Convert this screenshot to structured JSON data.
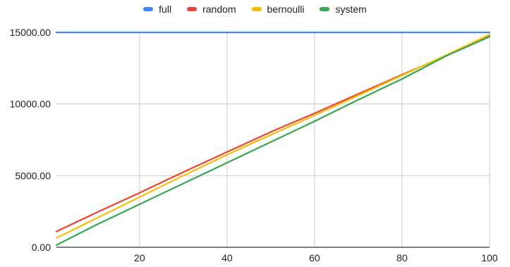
{
  "chart_data": {
    "type": "line",
    "title": "",
    "xlabel": "",
    "ylabel": "",
    "xlim": [
      1,
      100
    ],
    "ylim": [
      0,
      15000
    ],
    "x_ticks": [
      20,
      40,
      60,
      80,
      100
    ],
    "y_ticks": [
      0,
      5000,
      10000,
      15000
    ],
    "y_tick_labels": [
      "0.00",
      "5000.00",
      "10000.00",
      "15000.00"
    ],
    "grid": true,
    "legend": "top-center",
    "series": [
      {
        "name": "full",
        "color": "#4285f4",
        "x": [
          1,
          10,
          20,
          30,
          40,
          50,
          60,
          70,
          80,
          90,
          100
        ],
        "y": [
          15000,
          15000,
          15000,
          15000,
          15000,
          15000,
          15000,
          15000,
          15000,
          15000,
          15000
        ]
      },
      {
        "name": "random",
        "color": "#ea4335",
        "x": [
          1,
          10,
          20,
          30,
          40,
          50,
          60,
          70,
          80,
          90,
          100
        ],
        "y": [
          1100,
          2400,
          3800,
          5250,
          6650,
          8050,
          9350,
          10700,
          12050,
          13350,
          14750
        ]
      },
      {
        "name": "bernoulli",
        "color": "#fbbc04",
        "x": [
          1,
          10,
          20,
          30,
          40,
          50,
          60,
          70,
          80,
          90,
          100
        ],
        "y": [
          650,
          2000,
          3500,
          5000,
          6450,
          7850,
          9200,
          10600,
          12000,
          13400,
          14850
        ]
      },
      {
        "name": "system",
        "color": "#34a853",
        "x": [
          1,
          10,
          20,
          30,
          40,
          50,
          60,
          70,
          80,
          90,
          100
        ],
        "y": [
          150,
          1550,
          3000,
          4450,
          5900,
          7350,
          8800,
          10300,
          11750,
          13350,
          14700
        ]
      }
    ]
  }
}
